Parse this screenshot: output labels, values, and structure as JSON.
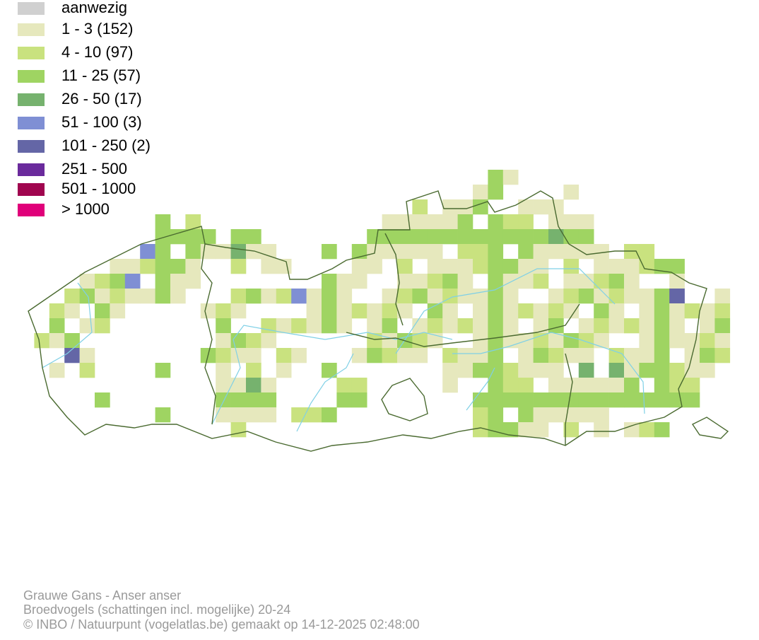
{
  "legend": [
    {
      "label": "aanwezig",
      "color": "#d0d0d0"
    },
    {
      "label": "1 - 3 (152)",
      "color": "#e6e8bd"
    },
    {
      "label": "4 - 10 (97)",
      "color": "#c9e27f"
    },
    {
      "label": "11 - 25 (57)",
      "color": "#9fd462"
    },
    {
      "label": "26 - 50 (17)",
      "color": "#76b26e"
    },
    {
      "label": "51 - 100 (3)",
      "color": "#7f8fd4"
    },
    {
      "label": "101 - 250 (2)",
      "color": "#6466a6"
    },
    {
      "label": "251 - 500",
      "color": "#6a2a9c"
    },
    {
      "label": "501 - 1000",
      "color": "#a0054f"
    },
    {
      "label": "> 1000",
      "color": "#e0007a"
    }
  ],
  "footer": {
    "title": "Grauwe Gans - Anser anser",
    "subtitle": "Broedvogels (schattingen incl. mogelijke) 20-24",
    "credit": "© INBO / Natuurpunt (vogelatlas.be) gemaakt op 14-12-2025 02:48:00"
  }
}
